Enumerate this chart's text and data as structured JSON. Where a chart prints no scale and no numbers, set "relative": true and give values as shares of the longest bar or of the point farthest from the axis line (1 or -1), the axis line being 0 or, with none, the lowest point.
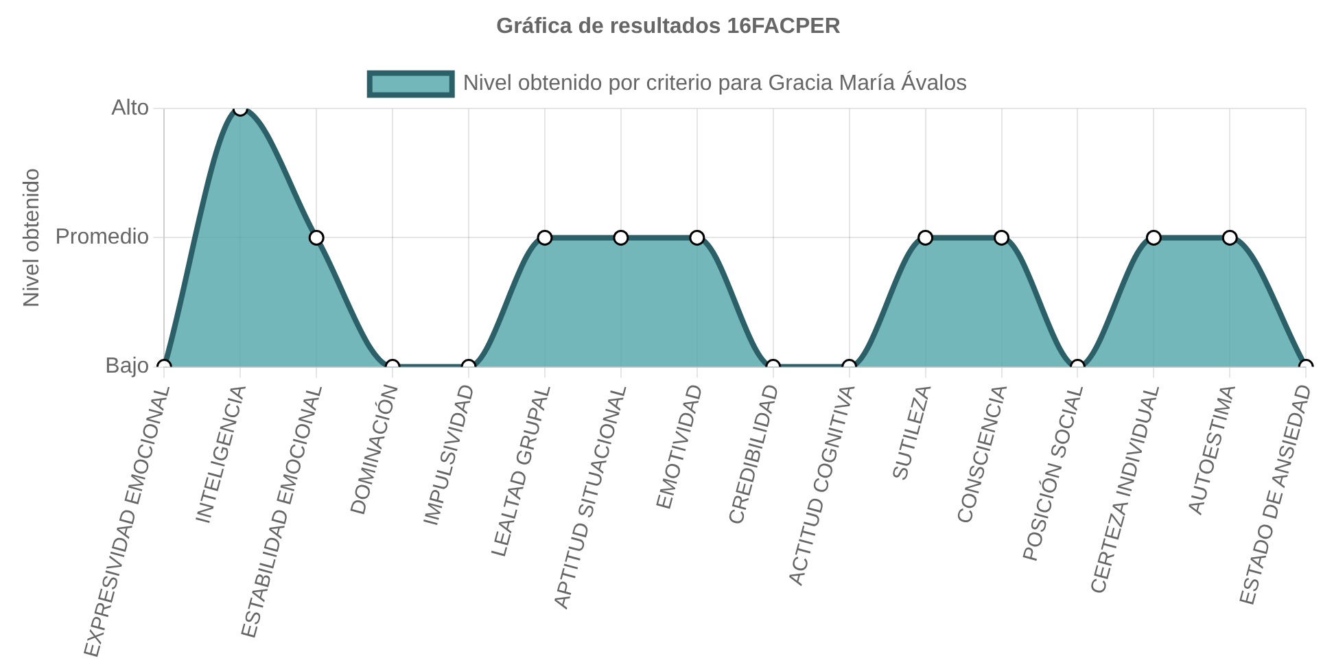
{
  "chart_data": {
    "type": "area",
    "title": "Gráfica de resultados 16FACPER",
    "ylabel": "Nivel obtenido",
    "categories": [
      "EXPRESIVIDAD EMOCIONAL",
      "INTELIGENCIA",
      "ESTABILIDAD EMOCIONAL",
      "DOMINACIÓN",
      "IMPULSIVIDAD",
      "LEALTAD GRUPAL",
      "APTITUD SITUACIONAL",
      "EMOTIVIDAD",
      "CREDIBILIDAD",
      "ACTITUD COGNITIVA",
      "SUTILEZA",
      "CONSCIENCIA",
      "POSICIÓN SOCIAL",
      "CERTEZA INDIVIDUAL",
      "AUTOESTIMA",
      "ESTADO DE ANSIEDAD"
    ],
    "series": [
      {
        "name": "Nivel obtenido por criterio para Gracia María Ávalos",
        "color": "#2b6068",
        "values": [
          0,
          1,
          0.5,
          0,
          0,
          0.5,
          0.5,
          0.5,
          0,
          0,
          0.5,
          0.5,
          0,
          0.5,
          0.5,
          0
        ]
      }
    ],
    "relative": true,
    "annotations": [
      "Bajo",
      "Promedio",
      "Alto"
    ],
    "grid": true,
    "legend": "top",
    "marker": "circle"
  }
}
